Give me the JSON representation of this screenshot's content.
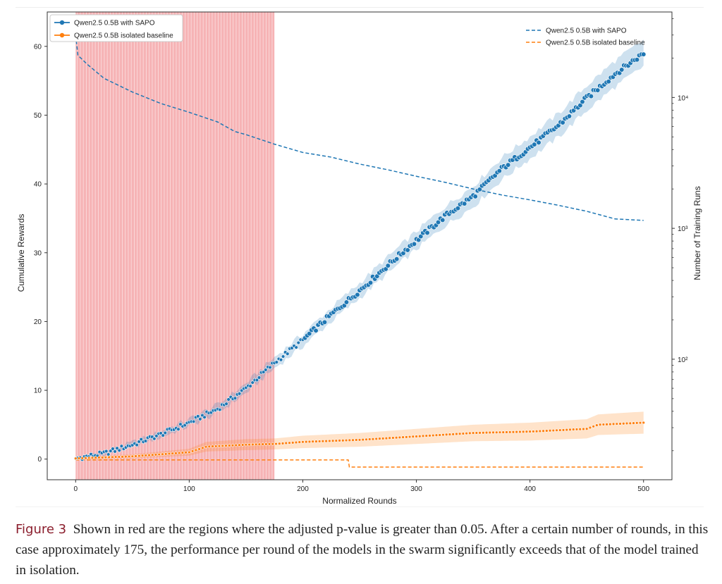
{
  "chart_data": {
    "type": "line",
    "title": "",
    "xlabel": "Normalized Rounds",
    "ylabel": "Cumulative Rewards",
    "ylabel_right": "Number of Training Runs",
    "xlim": [
      -25,
      525
    ],
    "ylim": [
      -3,
      65
    ],
    "ylim_right": [
      12,
      45000
    ],
    "right_scale": "log",
    "xticks": [
      0,
      100,
      200,
      300,
      400,
      500
    ],
    "yticks": [
      0,
      10,
      20,
      30,
      40,
      50,
      60
    ],
    "yticks_right": [
      {
        "value": 100,
        "label": "10²"
      },
      {
        "value": 1000,
        "label": "10³"
      },
      {
        "value": 10000,
        "label": "10⁴"
      }
    ],
    "significance_region": {
      "x_start": 0,
      "x_end": 175,
      "color": "#f4a6a8"
    },
    "legend_left": {
      "placement": "top-left",
      "entries": [
        {
          "label": "Qwen2.5 0.5B with SAPO",
          "color": "#1f77b4"
        },
        {
          "label": "Qwen2.5 0.5B isolated baseline",
          "color": "#ff7f0e"
        }
      ]
    },
    "legend_right": {
      "placement": "top-right",
      "entries": [
        {
          "label": "Qwen2.5 0.5B with SAPO",
          "color": "#1f77b4"
        },
        {
          "label": "Qwen2.5 0.5B isolated baseline",
          "color": "#ff7f0e"
        }
      ]
    },
    "series": [
      {
        "name": "Qwen2.5 0.5B with SAPO",
        "axis": "left",
        "style": "markers-with-band",
        "color": "#1f77b4",
        "x": [
          0,
          25,
          50,
          75,
          100,
          125,
          150,
          175,
          200,
          225,
          250,
          275,
          300,
          325,
          350,
          375,
          400,
          425,
          450,
          475,
          500
        ],
        "y": [
          0.1,
          0.8,
          2.1,
          3.6,
          5.3,
          7.3,
          10.3,
          14.0,
          17.3,
          21.0,
          24.5,
          28.2,
          31.8,
          35.3,
          38.2,
          42.2,
          45.3,
          48.5,
          52.5,
          56.0,
          59.0
        ],
        "band": [
          0.1,
          0.2,
          0.3,
          0.4,
          0.5,
          0.6,
          0.7,
          0.8,
          0.9,
          1.0,
          1.1,
          1.2,
          1.3,
          1.4,
          1.5,
          1.6,
          1.6,
          1.7,
          1.8,
          1.9,
          1.9
        ]
      },
      {
        "name": "Qwen2.5 0.5B isolated baseline",
        "axis": "left",
        "style": "markers-with-band",
        "color": "#ff7f0e",
        "x": [
          0,
          50,
          100,
          115,
          150,
          175,
          200,
          250,
          300,
          350,
          400,
          450,
          460,
          500
        ],
        "y": [
          0.1,
          0.4,
          1.0,
          1.8,
          2.1,
          2.2,
          2.5,
          2.8,
          3.3,
          3.8,
          4.0,
          4.4,
          5.0,
          5.3
        ],
        "band": [
          0.2,
          0.3,
          0.5,
          0.7,
          0.8,
          0.8,
          0.9,
          1.0,
          1.1,
          1.2,
          1.3,
          1.4,
          1.5,
          1.6
        ]
      },
      {
        "name": "Qwen2.5 0.5B with SAPO",
        "axis": "right",
        "style": "dashed",
        "color": "#1f77b4",
        "x": [
          0,
          2,
          10,
          25,
          50,
          75,
          100,
          125,
          140,
          150,
          175,
          200,
          225,
          250,
          275,
          300,
          325,
          350,
          375,
          400,
          425,
          450,
          475,
          500
        ],
        "y": [
          30000,
          21000,
          18000,
          14000,
          11000,
          9000,
          7700,
          6500,
          5500,
          5200,
          4400,
          3800,
          3500,
          3100,
          2800,
          2500,
          2250,
          2000,
          1800,
          1650,
          1500,
          1350,
          1180,
          1150
        ]
      },
      {
        "name": "Qwen2.5 0.5B isolated baseline",
        "axis": "right",
        "style": "dashed",
        "color": "#ff7f0e",
        "x": [
          0,
          170,
          171,
          240,
          241,
          500
        ],
        "y": [
          17,
          17,
          17,
          17,
          15,
          15
        ]
      }
    ]
  },
  "caption": {
    "label": "Figure 3",
    "text": "Shown in red are the regions where the adjusted p-value is greater than 0.05. After a certain number of rounds, in this case approximately 175, the performance per round of the models in the swarm significantly exceeds that of the model trained in isolation."
  }
}
